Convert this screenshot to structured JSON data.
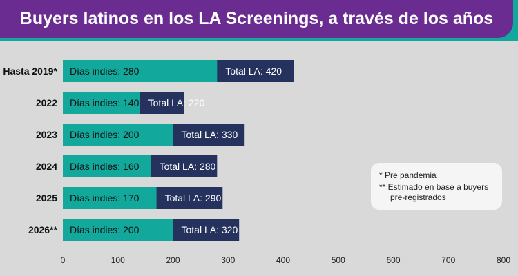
{
  "colors": {
    "indies": "#12a89c",
    "total": "#25325d",
    "title_bg": "#6a2c91",
    "title_accent": "#12a89c",
    "background": "#d9d9d9"
  },
  "chart_data": {
    "type": "bar",
    "orientation": "horizontal",
    "title": "Buyers latinos en los LA Screenings, a través de los años",
    "categories": [
      "Hasta 2019*",
      "2022",
      "2023",
      "2024",
      "2025",
      "2026**"
    ],
    "series": [
      {
        "name": "Total LA",
        "values": [
          420,
          220,
          330,
          280,
          290,
          320
        ],
        "labels": [
          "Total LA: 420",
          "Total LA: 220",
          "Total LA: 330",
          "Total LA: 280",
          "Total LA: 290",
          "Total LA: 320"
        ]
      },
      {
        "name": "Días indies",
        "values": [
          280,
          140,
          200,
          160,
          170,
          200
        ],
        "labels": [
          "Días indies: 280",
          "Días indies: 140",
          "Días indies: 200",
          "Días indies: 160",
          "Días indies: 170",
          "Días indies: 200"
        ]
      }
    ],
    "stacked": true,
    "xlim": [
      0,
      800
    ],
    "xticks": [
      0,
      100,
      200,
      300,
      400,
      500,
      600,
      700,
      800
    ],
    "xlabel": "",
    "ylabel": "",
    "grid": false,
    "legend": "none"
  },
  "notes": {
    "line1": "* Pre pandemia",
    "line2": "** Estimado en base a buyers",
    "line3": "pre-registrados"
  }
}
